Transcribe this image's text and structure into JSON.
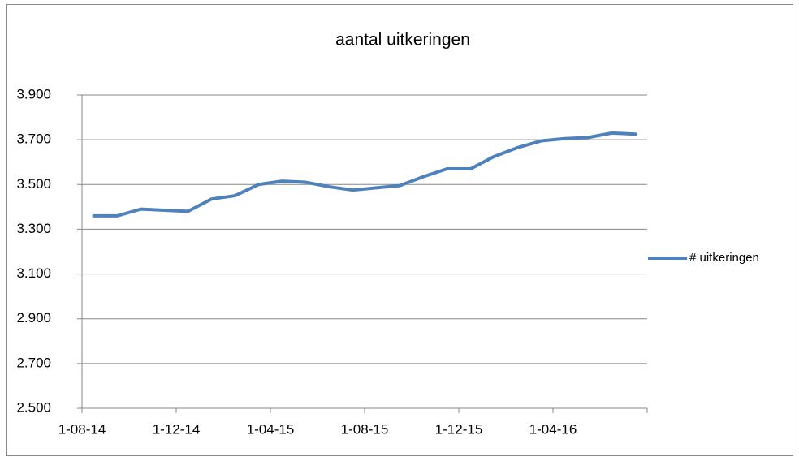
{
  "chart_data": {
    "type": "line",
    "title": "aantal uitkeringen",
    "categories": [
      "1-08-14",
      null,
      null,
      null,
      "1-12-14",
      null,
      null,
      null,
      "1-04-15",
      null,
      null,
      null,
      "1-08-15",
      null,
      null,
      null,
      "1-12-15",
      null,
      null,
      null,
      "1-04-16",
      null,
      null,
      null
    ],
    "series": [
      {
        "name": "# uitkeringen",
        "color": "#4f81bd",
        "values": [
          3360,
          3360,
          3390,
          3385,
          3380,
          3435,
          3450,
          3500,
          3515,
          3510,
          3490,
          3475,
          3485,
          3495,
          3535,
          3570,
          3570,
          3625,
          3665,
          3695,
          3705,
          3710,
          3730,
          3725
        ]
      }
    ],
    "ylim": [
      2500,
      3900
    ],
    "yticks": [
      {
        "value": 2500,
        "label": "2.500"
      },
      {
        "value": 2700,
        "label": "2.700"
      },
      {
        "value": 2900,
        "label": "2.900"
      },
      {
        "value": 3100,
        "label": "3.100"
      },
      {
        "value": 3300,
        "label": "3.300"
      },
      {
        "value": 3500,
        "label": "3.500"
      },
      {
        "value": 3700,
        "label": "3.700"
      },
      {
        "value": 3900,
        "label": "3.900"
      }
    ],
    "grid": true,
    "legend": "right"
  }
}
